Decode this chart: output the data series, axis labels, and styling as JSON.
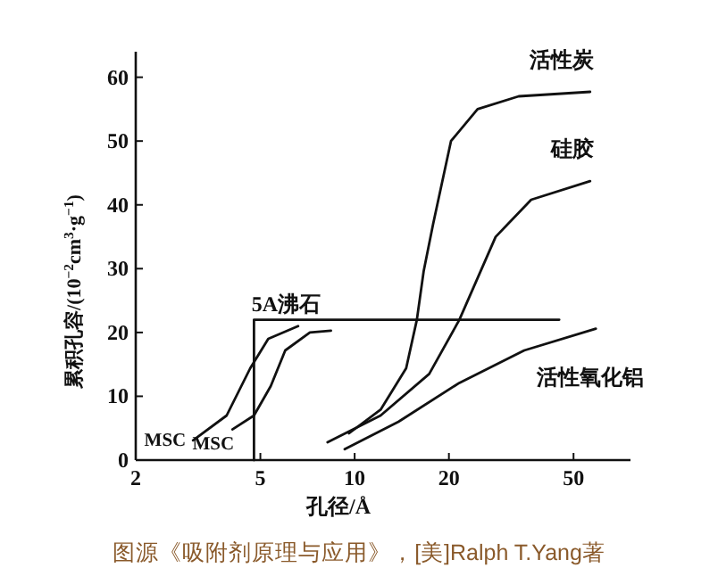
{
  "chart_data": {
    "type": "line",
    "xlabel": "孔径/Å",
    "ylabel": "累积孔容/(10$^{−2}$cm$^{3}$·g$^{−1}$)",
    "log": "x",
    "xlim": [
      2,
      76
    ],
    "xticks": [
      2,
      5,
      10,
      20,
      50
    ],
    "ylim": [
      0,
      64
    ],
    "yticks": [
      0,
      10,
      20,
      30,
      40,
      50,
      60
    ],
    "grid": false,
    "legend": false,
    "marker": "none",
    "line_style": "solid",
    "series": [
      {
        "name": "MSC",
        "color": "#111111",
        "x": [
          3.05,
          3.9,
          4.64,
          5.3,
          6.6
        ],
        "values": [
          3.1,
          7,
          14.4,
          19,
          21
        ]
      },
      {
        "name": "MSC",
        "color": "#111111",
        "x": [
          4.07,
          4.77,
          5.4,
          6.0,
          7.2,
          8.4
        ],
        "values": [
          4.8,
          7,
          11.6,
          17.2,
          20,
          20.3
        ]
      },
      {
        "name": "5A沸石",
        "color": "#111111",
        "x": [
          4.77,
          4.77,
          45
        ],
        "values": [
          0,
          22,
          22
        ]
      },
      {
        "name": "活性炭",
        "color": "#111111",
        "x": [
          9.6,
          12.1,
          14.6,
          15.8,
          16.6,
          17.8,
          20.3,
          24.7,
          33.4,
          56.5
        ],
        "values": [
          4.2,
          7.9,
          14.4,
          22,
          29.6,
          37,
          50,
          55,
          57,
          57.7
        ]
      },
      {
        "name": "硅胶",
        "color": "#111111",
        "x": [
          8.2,
          12.1,
          17.3,
          21.6,
          28.2,
          36.6,
          56.5
        ],
        "values": [
          2.8,
          7,
          13.5,
          22,
          35,
          40.8,
          43.7
        ]
      },
      {
        "name": "活性氧化铝",
        "color": "#111111",
        "x": [
          9.3,
          13.8,
          21.6,
          34.8,
          58.9
        ],
        "values": [
          1.7,
          6,
          12.1,
          17.2,
          20.6
        ]
      }
    ],
    "annotations": [
      "图源《吸附剂原理与应用》，[美]Ralph T.Yang著"
    ]
  }
}
